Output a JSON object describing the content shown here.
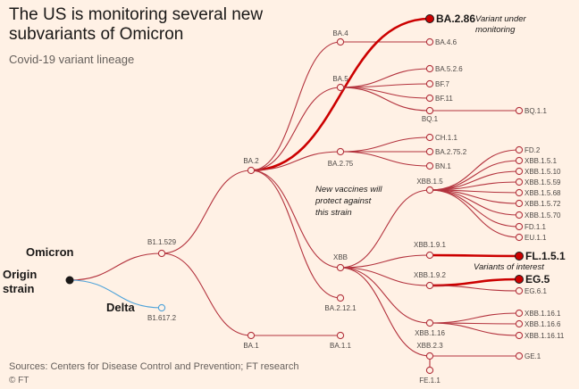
{
  "header": {
    "title": "The US is monitoring several new subvariants of Omicron",
    "subtitle": "Covid-19 variant lineage"
  },
  "footer": {
    "source": "Sources: Centers for Disease Control and Prevention; FT research",
    "credit": "© FT"
  },
  "colors": {
    "line": "#b3323d",
    "highlight": "#cc0000",
    "delta": "#4fa3d9",
    "text": "#33302e",
    "background": "#fff1e5"
  },
  "nodes": {
    "origin": "Origin strain",
    "omicron": "Omicron",
    "delta": "Delta",
    "b11529": "B1.1.529",
    "b16172": "B1.617.2",
    "ba2": "BA.2",
    "ba1": "BA.1",
    "ba11": "BA.1.1",
    "ba4": "BA.4",
    "ba46": "BA.4.6",
    "ba286": "BA.2.86",
    "ba5": "BA.5",
    "ba526": "BA.5.2.6",
    "bf7": "BF.7",
    "bf11": "BF.11",
    "bq1": "BQ.1",
    "bq11": "BQ.1.1",
    "ba275": "BA.2.75",
    "ch11": "CH.1.1",
    "ba2752": "BA.2.75.2",
    "bn1": "BN.1",
    "xbb": "XBB",
    "ba2121": "BA.2.12.1",
    "xbb15": "XBB.1.5",
    "fd2": "FD.2",
    "xbb151": "XBB.1.5.1",
    "xbb1510": "XBB.1.5.10",
    "xbb1559": "XBB.1.5.59",
    "xbb1568": "XBB.1.5.68",
    "xbb1572": "XBB.1.5.72",
    "xbb1570": "XBB.1.5.70",
    "fd11": "FD.1.1",
    "eu11": "EU.1.1",
    "xbb191": "XBB.1.9.1",
    "fl151": "FL.1.5.1",
    "xbb192": "XBB.1.9.2",
    "eg5": "EG.5",
    "eg61": "EG.6.1",
    "xbb116": "XBB.1.16",
    "xbb1161": "XBB.1.16.1",
    "xbb1166": "XBB.1.16.6",
    "xbb11611": "XBB.1.16.11",
    "xbb23": "XBB.2.3",
    "ge1": "GE.1",
    "fe11": "FE.1.1"
  },
  "annotations": {
    "variant_under_monitoring": "Variant under monitoring",
    "new_vaccines": "New vaccines will protect against this strain",
    "variants_of_interest": "Variants of interest"
  }
}
